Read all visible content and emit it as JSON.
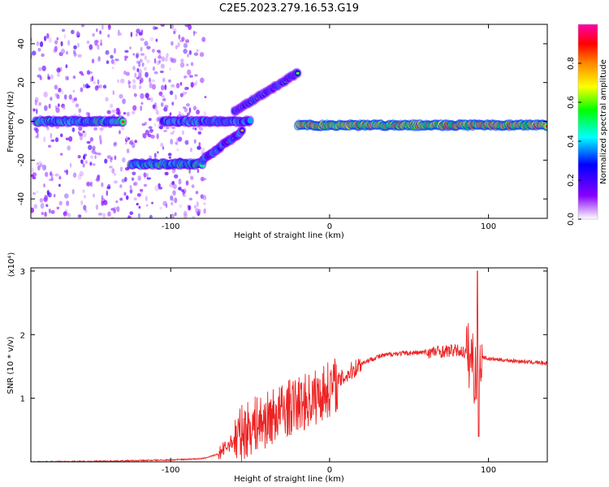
{
  "figure": {
    "title": "C2E5.2023.279.16.53.G19"
  },
  "chart_data": [
    {
      "type": "heatmap",
      "xlabel": "Height of straight line (km)",
      "ylabel": "Frequency (Hz)",
      "xlim": [
        -188,
        137
      ],
      "ylim": [
        -50,
        50
      ],
      "x_ticks": [
        -100,
        0,
        100
      ],
      "y_ticks": [
        -40,
        -20,
        0,
        20,
        40
      ],
      "colorbar": {
        "label": "Normalized spectral amplitude",
        "range": [
          0,
          1
        ],
        "ticks": [
          0.0,
          0.2,
          0.4,
          0.6,
          0.8
        ],
        "colormap": [
          "#ffffff",
          "#8800ff",
          "#0000ff",
          "#00ffff",
          "#00ff00",
          "#ffff00",
          "#ff8800",
          "#ff0000",
          "#ff00aa"
        ]
      },
      "features": [
        {
          "x": [
            -185,
            -130
          ],
          "freq": 0,
          "amplitude": 0.45
        },
        {
          "x": [
            -125,
            -80
          ],
          "freq": -22,
          "amplitude": 0.5
        },
        {
          "x": [
            -105,
            -50
          ],
          "freq": 0,
          "amplitude": 0.4
        },
        {
          "x": [
            -80,
            -55
          ],
          "freq_from": -20,
          "freq_to": -5,
          "amplitude": 0.35
        },
        {
          "x": [
            -60,
            -20
          ],
          "freq_from": 5,
          "freq_to": 25,
          "amplitude": 0.3
        },
        {
          "x": [
            -20,
            137
          ],
          "freq": -2,
          "amplitude": 0.8
        }
      ]
    },
    {
      "type": "line",
      "xlabel": "Height of straight line (km)",
      "ylabel": "SNR (10 * v/v)",
      "y_multiplier": "(x10⁴)",
      "xlim": [
        -188,
        137
      ],
      "ylim": [
        0,
        3.05
      ],
      "x_ticks": [
        -100,
        0,
        100
      ],
      "y_ticks": [
        1,
        2,
        3
      ],
      "series_color": "#ee2222",
      "keypoints": {
        "x": [
          -188,
          -140,
          -100,
          -80,
          -70,
          -60,
          -50,
          -40,
          -30,
          -20,
          -10,
          0,
          10,
          20,
          30,
          40,
          60,
          80,
          85,
          90,
          92,
          94,
          96,
          100,
          120,
          137
        ],
        "y": [
          0.0,
          0.01,
          0.03,
          0.05,
          0.12,
          0.35,
          0.55,
          0.65,
          0.8,
          0.9,
          1.0,
          1.15,
          1.35,
          1.55,
          1.65,
          1.7,
          1.72,
          1.75,
          1.72,
          1.6,
          1.3,
          1.6,
          1.65,
          1.62,
          1.58,
          1.55
        ]
      }
    }
  ]
}
